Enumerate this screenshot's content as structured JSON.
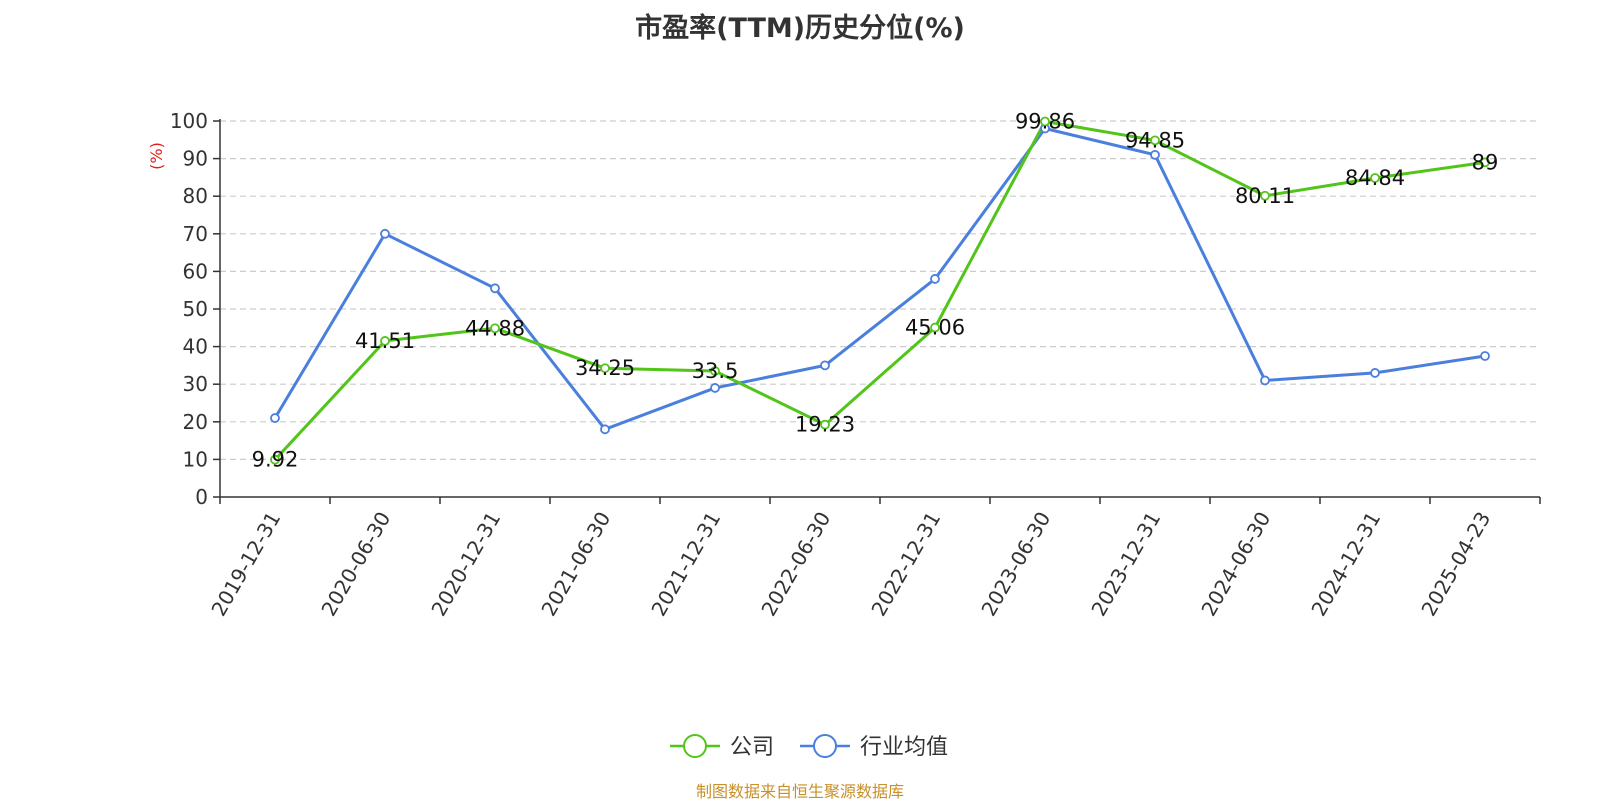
{
  "chart_data": {
    "type": "line",
    "title": "市盈率(TTM)历史分位(%)",
    "xlabel": "",
    "ylabel": "(%)",
    "ylim": [
      0,
      100
    ],
    "yticks": [
      0,
      10,
      20,
      30,
      40,
      50,
      60,
      70,
      80,
      90,
      100
    ],
    "grid": true,
    "legend_position": "bottom-center",
    "categories": [
      "2019-12-31",
      "2020-06-30",
      "2020-12-31",
      "2021-06-30",
      "2021-12-31",
      "2022-06-30",
      "2022-12-31",
      "2023-06-30",
      "2023-12-31",
      "2024-06-30",
      "2024-12-31",
      "2025-04-23"
    ],
    "series": [
      {
        "name": "公司",
        "color": "#52c41a",
        "values": [
          9.92,
          41.51,
          44.88,
          34.25,
          33.5,
          19.23,
          45.06,
          99.86,
          94.85,
          80.11,
          84.84,
          89
        ],
        "labels": [
          "9.92",
          "41.51",
          "44.88",
          "34.25",
          "33.5",
          "19.23",
          "45.06",
          "99.86",
          "94.85",
          "80.11",
          "84.84",
          "89"
        ]
      },
      {
        "name": "行业均值",
        "color": "#4a7fdd",
        "values": [
          21,
          70,
          55.5,
          18,
          29,
          35,
          58,
          98,
          91,
          31,
          33,
          37.5
        ]
      }
    ]
  },
  "source": "制图数据来自恒生聚源数据库",
  "colors": {
    "axis": "#333333",
    "grid": "#cccccc",
    "ylabel": "#e0201b",
    "source": "#c8902a"
  }
}
